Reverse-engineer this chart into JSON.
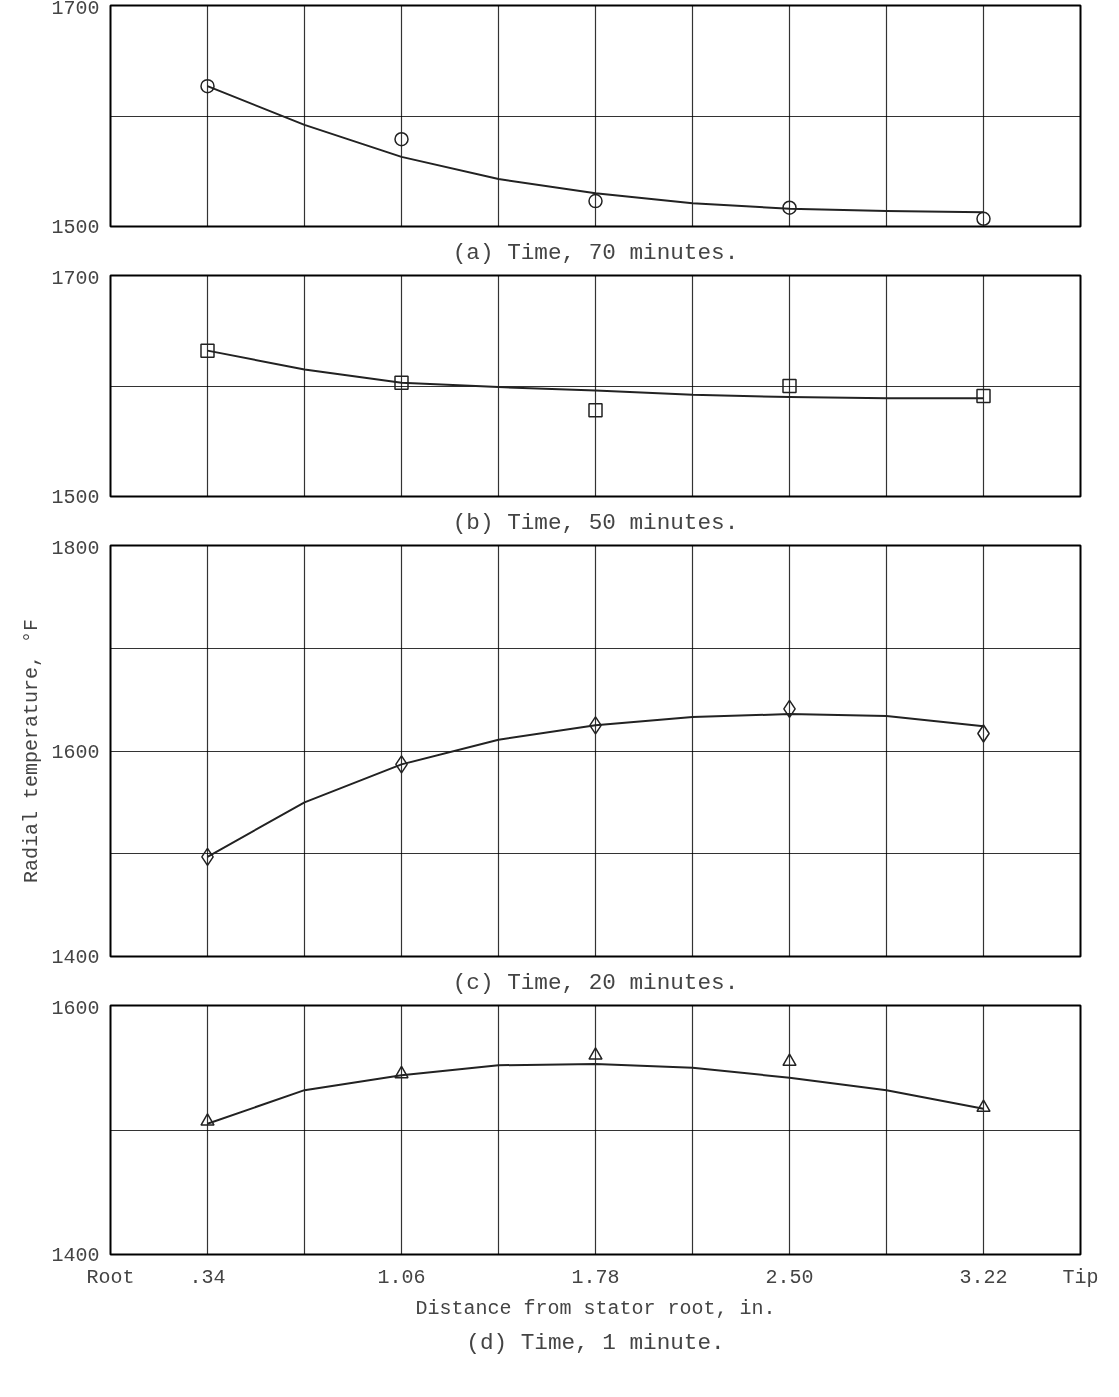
{
  "chart_data": [
    {
      "type": "scatter",
      "title": "(a) Time, 70 minutes.",
      "x": [
        0.34,
        1.06,
        1.78,
        2.5,
        3.22
      ],
      "xlim": [
        -0.02,
        3.58
      ],
      "xticks": [
        {
          "value": -0.02,
          "label": null
        },
        {
          "value": 0.34,
          "label": null
        },
        {
          "value": 0.7,
          "label": null
        },
        {
          "value": 1.06,
          "label": null
        },
        {
          "value": 1.42,
          "label": null
        },
        {
          "value": 1.78,
          "label": null
        },
        {
          "value": 2.14,
          "label": null
        },
        {
          "value": 2.5,
          "label": null
        },
        {
          "value": 2.86,
          "label": null
        },
        {
          "value": 3.22,
          "label": null
        },
        {
          "value": 3.58,
          "label": null
        }
      ],
      "ylim": [
        1500,
        1700
      ],
      "yticks": [
        1500,
        {
          "value": 1600,
          "label": null
        },
        1700
      ],
      "grid": true,
      "tick_labels": "y",
      "series": [
        {
          "marker": "circle",
          "color": "#222222",
          "values": [
            1627,
            1579,
            1523,
            1517,
            1507
          ]
        },
        {
          "type": "line",
          "marker": "none",
          "line_style": "solid",
          "color": "#222222",
          "x": [
            0.34,
            0.7,
            1.06,
            1.42,
            1.78,
            2.14,
            2.5,
            2.86,
            3.22
          ],
          "values": [
            1627,
            1592,
            1563,
            1543,
            1530,
            1521,
            1516,
            1514,
            1513
          ]
        }
      ]
    },
    {
      "type": "scatter",
      "title": "(b) Time, 50 minutes.",
      "x": [
        0.34,
        1.06,
        1.78,
        2.5,
        3.22
      ],
      "xlim": [
        -0.02,
        3.58
      ],
      "xticks": [
        {
          "value": -0.02,
          "label": null
        },
        {
          "value": 0.34,
          "label": null
        },
        {
          "value": 0.7,
          "label": null
        },
        {
          "value": 1.06,
          "label": null
        },
        {
          "value": 1.42,
          "label": null
        },
        {
          "value": 1.78,
          "label": null
        },
        {
          "value": 2.14,
          "label": null
        },
        {
          "value": 2.5,
          "label": null
        },
        {
          "value": 2.86,
          "label": null
        },
        {
          "value": 3.22,
          "label": null
        },
        {
          "value": 3.58,
          "label": null
        }
      ],
      "ylim": [
        1500,
        1700
      ],
      "yticks": [
        1500,
        {
          "value": 1600,
          "label": null
        },
        1700
      ],
      "grid": true,
      "tick_labels": "y",
      "series": [
        {
          "marker": "square",
          "color": "#222222",
          "values": [
            1632,
            1603,
            1578,
            1600,
            1591
          ]
        },
        {
          "type": "line",
          "marker": "none",
          "line_style": "solid",
          "color": "#222222",
          "x": [
            0.34,
            0.7,
            1.06,
            1.42,
            1.78,
            2.14,
            2.5,
            2.86,
            3.22
          ],
          "values": [
            1632,
            1615,
            1603,
            1599,
            1596,
            1592,
            1590,
            1589,
            1589
          ]
        }
      ]
    },
    {
      "type": "scatter",
      "title": "(c) Time, 20 minutes.",
      "ylabel": "Radial temperature, °F",
      "x": [
        0.34,
        1.06,
        1.78,
        2.5,
        3.22
      ],
      "xlim": [
        -0.02,
        3.58
      ],
      "xticks": [
        {
          "value": -0.02,
          "label": null
        },
        {
          "value": 0.34,
          "label": null
        },
        {
          "value": 0.7,
          "label": null
        },
        {
          "value": 1.06,
          "label": null
        },
        {
          "value": 1.42,
          "label": null
        },
        {
          "value": 1.78,
          "label": null
        },
        {
          "value": 2.14,
          "label": null
        },
        {
          "value": 2.5,
          "label": null
        },
        {
          "value": 2.86,
          "label": null
        },
        {
          "value": 3.22,
          "label": null
        },
        {
          "value": 3.58,
          "label": null
        }
      ],
      "ylim": [
        1400,
        1800
      ],
      "yticks": [
        1400,
        {
          "value": 1500,
          "label": null
        },
        1600,
        {
          "value": 1700,
          "label": null
        },
        1800
      ],
      "grid": true,
      "tick_labels": "y",
      "series": [
        {
          "marker": "diamond",
          "color": "#222222",
          "values": [
            1497,
            1587,
            1625,
            1641,
            1617
          ]
        },
        {
          "type": "line",
          "marker": "none",
          "line_style": "solid",
          "color": "#222222",
          "x": [
            0.34,
            0.7,
            1.06,
            1.42,
            1.78,
            2.14,
            2.5,
            2.86,
            3.22
          ],
          "values": [
            1497,
            1550,
            1587,
            1611,
            1625,
            1633,
            1636,
            1634,
            1624
          ]
        }
      ]
    },
    {
      "type": "scatter",
      "title": "(d) Time, 1 minute.",
      "xlabel": "Distance from stator root, in.",
      "x": [
        0.34,
        1.06,
        1.78,
        2.5,
        3.22
      ],
      "xlim": [
        -0.02,
        3.58
      ],
      "xticks": [
        {
          "value": -0.02,
          "label": "Root"
        },
        {
          "value": 0.34,
          "label": ".34"
        },
        {
          "value": 0.7,
          "label": null
        },
        1.06,
        {
          "value": 1.42,
          "label": null
        },
        1.78,
        {
          "value": 2.14,
          "label": null
        },
        {
          "value": 2.5,
          "label": "2.50"
        },
        {
          "value": 2.86,
          "label": null
        },
        3.22,
        {
          "value": 3.58,
          "label": "Tip"
        }
      ],
      "ylim": [
        1400,
        1600
      ],
      "yticks": [
        1400,
        {
          "value": 1500,
          "label": null
        },
        1600
      ],
      "grid": true,
      "series": [
        {
          "marker": "triangle",
          "color": "#222222",
          "values": [
            1507,
            1545,
            1560,
            1555,
            1518
          ]
        },
        {
          "type": "line",
          "marker": "none",
          "line_style": "solid",
          "color": "#222222",
          "x": [
            0.34,
            0.7,
            1.06,
            1.42,
            1.78,
            2.14,
            2.5,
            2.86,
            3.22
          ],
          "values": [
            1505,
            1532,
            1544,
            1552,
            1553,
            1550,
            1542,
            1532,
            1517
          ]
        }
      ]
    }
  ]
}
